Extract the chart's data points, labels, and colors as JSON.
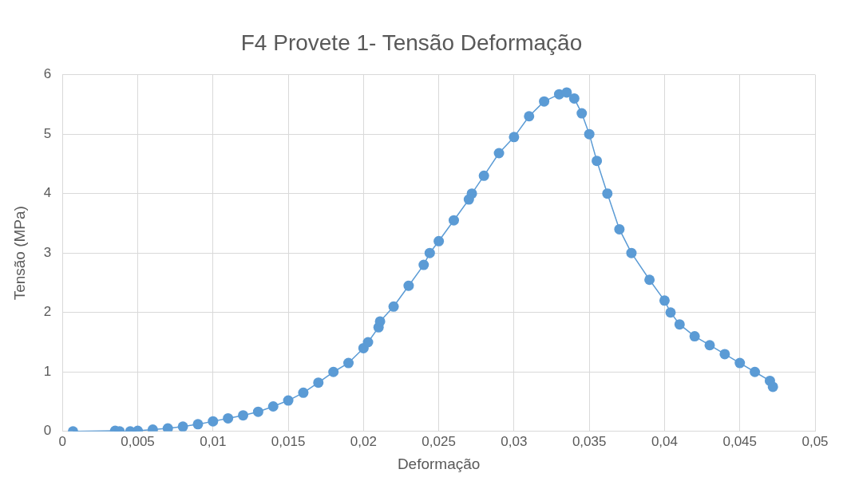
{
  "chart_data": {
    "type": "line",
    "title": "F4 Provete 1- Tensão Deformação",
    "xlabel": "Deformação",
    "ylabel": "Tensão (MPa)",
    "xlim": [
      0,
      0.05
    ],
    "xticks": [
      {
        "value": 0,
        "label": "0"
      },
      {
        "value": 0.005,
        "label": "0,005"
      },
      {
        "value": 0.01,
        "label": "0,01"
      },
      {
        "value": 0.015,
        "label": "0,015"
      },
      {
        "value": 0.02,
        "label": "0,02"
      },
      {
        "value": 0.025,
        "label": "0,025"
      },
      {
        "value": 0.03,
        "label": "0,03"
      },
      {
        "value": 0.035,
        "label": "0,035"
      },
      {
        "value": 0.04,
        "label": "0,04"
      },
      {
        "value": 0.045,
        "label": "0,045"
      },
      {
        "value": 0.05,
        "label": "0,05"
      }
    ],
    "ylim": [
      0,
      6
    ],
    "yticks": [
      0,
      1,
      2,
      3,
      4,
      5,
      6
    ],
    "grid": true,
    "legend": false,
    "marker": "circle",
    "line_style": "solid",
    "series": [
      {
        "color": "#5b9bd5",
        "x": [
          0.0007,
          0.0035,
          0.0038,
          0.0045,
          0.005,
          0.006,
          0.007,
          0.008,
          0.009,
          0.01,
          0.011,
          0.012,
          0.013,
          0.014,
          0.015,
          0.016,
          0.017,
          0.018,
          0.019,
          0.02,
          0.0203,
          0.021,
          0.0211,
          0.022,
          0.023,
          0.024,
          0.0244,
          0.025,
          0.026,
          0.027,
          0.0272,
          0.028,
          0.029,
          0.03,
          0.031,
          0.032,
          0.033,
          0.0335,
          0.034,
          0.0345,
          0.035,
          0.0355,
          0.0362,
          0.037,
          0.0378,
          0.039,
          0.04,
          0.0404,
          0.041,
          0.042,
          0.043,
          0.044,
          0.045,
          0.046,
          0.047,
          0.0472
        ],
        "values": [
          0,
          0.01,
          0,
          0,
          0.01,
          0.03,
          0.05,
          0.08,
          0.12,
          0.17,
          0.22,
          0.27,
          0.33,
          0.42,
          0.52,
          0.65,
          0.82,
          1.0,
          1.15,
          1.4,
          1.5,
          1.75,
          1.85,
          2.1,
          2.45,
          2.8,
          3.0,
          3.2,
          3.55,
          3.9,
          4.0,
          4.3,
          4.68,
          4.95,
          5.3,
          5.55,
          5.67,
          5.7,
          5.6,
          5.35,
          5.0,
          4.55,
          4.0,
          3.4,
          3.0,
          2.55,
          2.2,
          2.0,
          1.8,
          1.6,
          1.45,
          1.3,
          1.15,
          1.0,
          0.85,
          0.75
        ]
      }
    ]
  }
}
